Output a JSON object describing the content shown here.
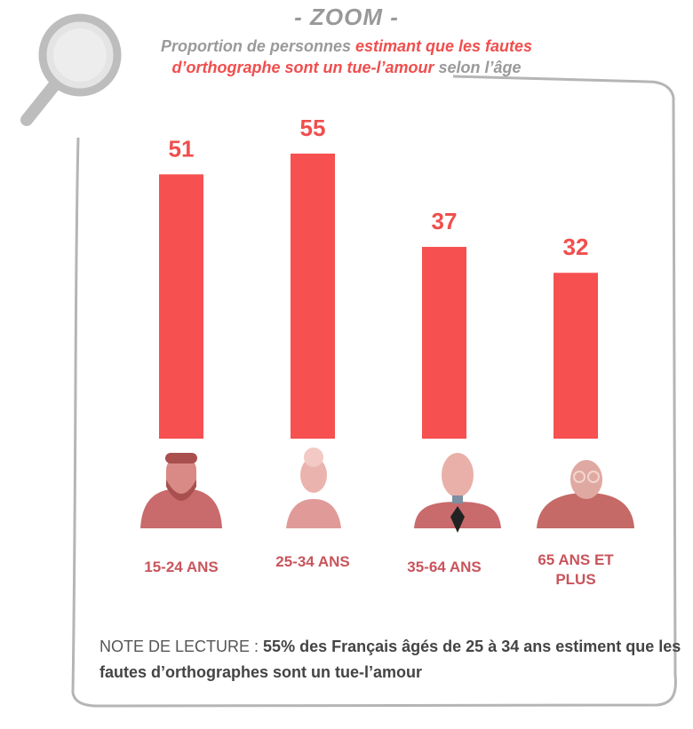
{
  "chart_data": {
    "type": "bar",
    "title": "- ZOOM -",
    "subtitle": {
      "start": "Proportion de personnes",
      "highlight": "estimant que les fautes d’orthographe sont un tue-l’amour",
      "end": "selon l’âge"
    },
    "categories": [
      "15-24 ANS",
      "25-34 ANS",
      "35-64 ANS",
      "65 ANS ET PLUS"
    ],
    "values": [
      51,
      55,
      37,
      32
    ],
    "color": "#f65050",
    "note": {
      "label": "NOTE DE LECTURE :",
      "text": "55% des Français âgés de 25 à 34 ans estiment que les fautes d’orthographes sont un tue-l’amour"
    }
  }
}
